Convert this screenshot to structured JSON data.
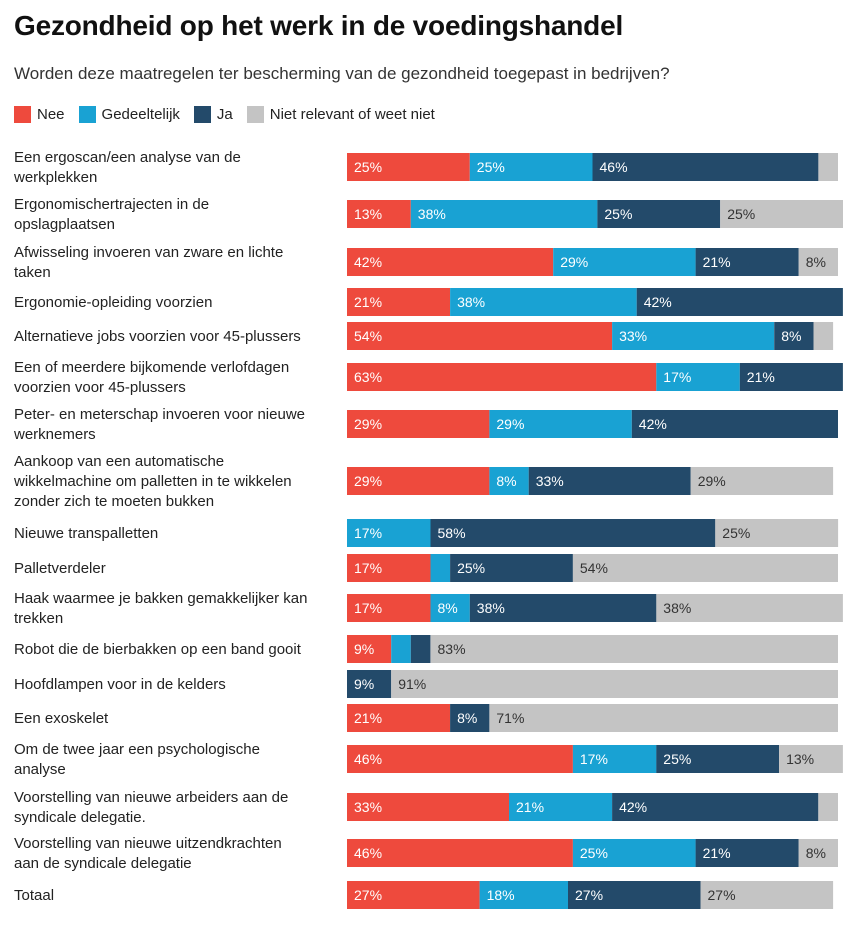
{
  "chart_data": {
    "type": "bar",
    "orientation": "horizontal",
    "stacked": true,
    "title": "Gezondheid op het werk in de voedingshandel",
    "subtitle": "Worden deze maatregelen ter bescherming van de gezondheid toegepast in bedrijven?",
    "legend_position": "top-left",
    "grid": false,
    "xlim": [
      0,
      100
    ],
    "value_suffix": "%",
    "categories": [
      [
        "Een ergoscan/een analyse van de",
        "werkplekken"
      ],
      [
        "Ergonomischertrajecten in de",
        "opslagplaatsen"
      ],
      [
        "Afwisseling invoeren van zware en lichte",
        "taken"
      ],
      [
        "Ergonomie-opleiding voorzien"
      ],
      [
        "Alternatieve jobs voorzien voor 45-plussers"
      ],
      [
        "Een of meerdere bijkomende verlofdagen",
        "voorzien voor 45-plussers"
      ],
      [
        "Peter- en meterschap invoeren voor nieuwe",
        "werknemers"
      ],
      [
        "Aankoop van een automatische",
        "wikkelmachine om palletten in te wikkelen",
        "zonder zich te moeten bukken"
      ],
      [
        "Nieuwe transpalletten"
      ],
      [
        "Palletverdeler"
      ],
      [
        "Haak waarmee je bakken gemakkelijker kan",
        "trekken"
      ],
      [
        "Robot die de bierbakken op een band gooit"
      ],
      [
        "Hoofdlampen voor in de kelders"
      ],
      [
        "Een exoskelet"
      ],
      [
        "Om de twee jaar een psychologische",
        "analyse"
      ],
      [
        "Voorstelling van nieuwe arbeiders aan de",
        "syndicale delegatie."
      ],
      [
        "Voorstelling van nieuwe uitzendkrachten",
        "aan de syndicale delegatie"
      ],
      [
        "Totaal"
      ]
    ],
    "series": [
      {
        "name": "Nee",
        "color": "#ee4a3d",
        "values": [
          25,
          13,
          42,
          21,
          54,
          63,
          29,
          29,
          0,
          17,
          17,
          9,
          0,
          21,
          46,
          33,
          46,
          27
        ],
        "labeled": [
          true,
          true,
          true,
          true,
          true,
          true,
          true,
          true,
          false,
          true,
          true,
          true,
          false,
          true,
          true,
          true,
          true,
          true
        ]
      },
      {
        "name": "Gedeeltelijk",
        "color": "#19a2d3",
        "values": [
          25,
          38,
          29,
          38,
          33,
          17,
          29,
          8,
          17,
          4,
          8,
          4,
          0,
          0,
          17,
          21,
          25,
          18
        ],
        "labeled": [
          true,
          true,
          true,
          true,
          true,
          true,
          true,
          true,
          true,
          false,
          true,
          false,
          false,
          false,
          true,
          true,
          true,
          true
        ]
      },
      {
        "name": "Ja",
        "color": "#234a6a",
        "values": [
          46,
          25,
          21,
          42,
          8,
          21,
          42,
          33,
          58,
          25,
          38,
          4,
          9,
          8,
          25,
          42,
          21,
          27
        ],
        "labeled": [
          true,
          true,
          true,
          true,
          true,
          true,
          true,
          true,
          true,
          true,
          true,
          false,
          true,
          true,
          true,
          true,
          true,
          true
        ]
      },
      {
        "name": "Niet relevant of weet niet",
        "color": "#c4c4c4",
        "values": [
          4,
          25,
          8,
          0,
          4,
          0,
          0,
          29,
          25,
          54,
          38,
          83,
          91,
          71,
          13,
          4,
          8,
          27
        ],
        "labeled": [
          false,
          true,
          true,
          false,
          false,
          false,
          false,
          true,
          true,
          true,
          true,
          true,
          true,
          true,
          true,
          false,
          true,
          true
        ]
      }
    ]
  }
}
